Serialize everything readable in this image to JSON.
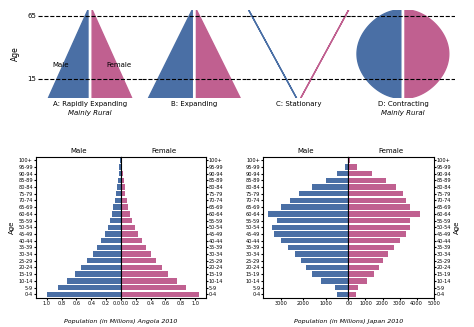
{
  "chart_data": [
    {
      "type": "schematic",
      "ylabel": "Age",
      "ylim": [
        0,
        70
      ],
      "yticks": [
        15,
        65
      ],
      "series": [
        {
          "name": "Male",
          "color": "#4a6fa5"
        },
        {
          "name": "Female",
          "color": "#c06090"
        }
      ],
      "panels": [
        {
          "title": "A: Rapidly Expanding",
          "subtitle": "Mainly Rural",
          "type": "triangle"
        },
        {
          "title": "B: Expanding",
          "type": "wide_triangle"
        },
        {
          "title": "C: Stationary",
          "type": "dome"
        },
        {
          "title": "D: Contracting",
          "subtitle": "Mainly Rural",
          "type": "mushroom"
        }
      ]
    },
    {
      "type": "pyramid",
      "orientation": "horizontal",
      "xlabel": "Population (in Millions) Angola 2010",
      "ylabel": "Age",
      "categories": [
        "0-4",
        "5-9",
        "10-14",
        "15-19",
        "20-24",
        "25-29",
        "30-34",
        "35-39",
        "40-44",
        "45-49",
        "50-54",
        "55-59",
        "60-64",
        "65-69",
        "70-74",
        "75-79",
        "80-84",
        "85-89",
        "90-94",
        "95-99",
        "100+"
      ],
      "series": [
        {
          "name": "Male",
          "color": "#4a6fa5",
          "values": [
            1.0,
            0.85,
            0.72,
            0.62,
            0.54,
            0.46,
            0.38,
            0.32,
            0.27,
            0.22,
            0.18,
            0.15,
            0.12,
            0.1,
            0.08,
            0.06,
            0.05,
            0.04,
            0.03,
            0.02,
            0.01
          ],
          "xlim": [
            0,
            1.15
          ],
          "xticks": [
            {
              "value": 1,
              "label": "1.0"
            },
            0.8,
            0.6,
            0.4,
            0.2,
            {
              "value": 0,
              "label": "0.0"
            }
          ]
        },
        {
          "name": "Female",
          "color": "#c06090",
          "values": [
            1.05,
            0.88,
            0.75,
            0.64,
            0.56,
            0.48,
            0.4,
            0.34,
            0.28,
            0.23,
            0.19,
            0.15,
            0.12,
            0.1,
            0.08,
            0.06,
            0.05,
            0.04,
            0.03,
            0.02,
            0.01
          ],
          "xlim": [
            0,
            1.15
          ],
          "xticks": [
            {
              "value": 0,
              "label": "0.0"
            },
            0.2,
            0.4,
            0.6,
            0.8,
            {
              "value": 1,
              "label": "1.0"
            }
          ]
        }
      ]
    },
    {
      "type": "pyramid",
      "orientation": "horizontal",
      "xlabel": "Population (in Millions) Japan 2010",
      "ylabel": "Age",
      "categories": [
        "0-4",
        "5-9",
        "10-14",
        "15-19",
        "20-24",
        "25-29",
        "30-34",
        "35-39",
        "40-44",
        "45-49",
        "50-54",
        "55-59",
        "60-64",
        "65-69",
        "70-74",
        "75-79",
        "80-84",
        "85-89",
        "90-94",
        "95-99",
        "100+"
      ],
      "series": [
        {
          "name": "Male",
          "color": "#4a6fa5",
          "values": [
            500,
            600,
            1200,
            1600,
            1900,
            2100,
            2400,
            2700,
            3000,
            3300,
            3400,
            3200,
            3600,
            3000,
            2600,
            2200,
            1600,
            1000,
            500,
            150,
            30
          ],
          "xlim": [
            0,
            3800
          ],
          "xticks": [
            3000,
            2000,
            1000,
            0
          ]
        },
        {
          "name": "Female",
          "color": "#c06090",
          "values": [
            450,
            550,
            1100,
            1500,
            1800,
            2000,
            2300,
            2700,
            3000,
            3400,
            3600,
            3600,
            4200,
            3600,
            3400,
            3200,
            2800,
            2200,
            1400,
            500,
            100
          ],
          "xlim": [
            0,
            5000
          ],
          "xticks": [
            0,
            1000,
            2000,
            3000,
            4000,
            5000
          ]
        }
      ]
    }
  ]
}
